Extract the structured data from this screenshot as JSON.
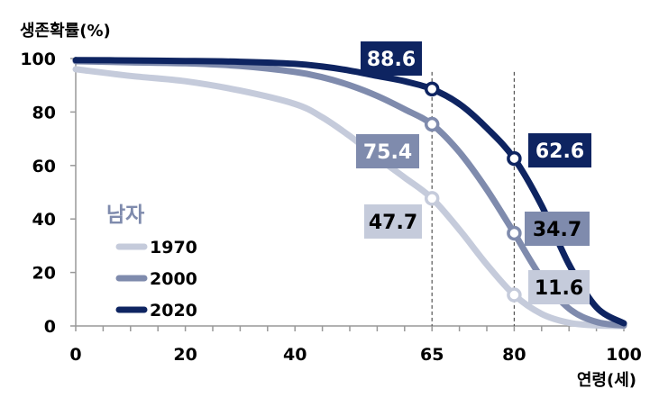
{
  "chart_data": {
    "type": "line",
    "ylabel": "생존확률(%)",
    "xlabel": "연령(세)",
    "xlim": [
      0,
      100
    ],
    "ylim": [
      0,
      100
    ],
    "x_ticks": [
      0,
      20,
      40,
      65,
      80,
      100
    ],
    "y_ticks": [
      0,
      20,
      40,
      60,
      80,
      100
    ],
    "legend_title": "남자",
    "legend_position": "lower-left",
    "grid": false,
    "reference_lines_x": [
      65,
      80
    ],
    "series": [
      {
        "name": "1970",
        "color": "#c5cbdb",
        "points": [
          [
            0,
            96
          ],
          [
            10,
            93.5
          ],
          [
            20,
            91.5
          ],
          [
            30,
            88
          ],
          [
            40,
            83
          ],
          [
            45,
            78
          ],
          [
            50,
            71
          ],
          [
            55,
            63
          ],
          [
            60,
            55.5
          ],
          [
            65,
            47.7
          ],
          [
            70,
            36
          ],
          [
            75,
            23
          ],
          [
            80,
            11.6
          ],
          [
            85,
            4.5
          ],
          [
            90,
            1.2
          ],
          [
            95,
            0.2
          ],
          [
            100,
            0
          ]
        ]
      },
      {
        "name": "2000",
        "color": "#7f8bad",
        "points": [
          [
            0,
            99
          ],
          [
            10,
            98.6
          ],
          [
            20,
            98.2
          ],
          [
            30,
            97.2
          ],
          [
            40,
            95
          ],
          [
            45,
            93
          ],
          [
            50,
            90
          ],
          [
            55,
            86
          ],
          [
            60,
            81
          ],
          [
            65,
            75.4
          ],
          [
            70,
            65
          ],
          [
            75,
            51
          ],
          [
            80,
            34.7
          ],
          [
            85,
            18
          ],
          [
            90,
            6.5
          ],
          [
            95,
            1.5
          ],
          [
            100,
            0.2
          ]
        ]
      },
      {
        "name": "2020",
        "color": "#0e2461",
        "points": [
          [
            0,
            99.4
          ],
          [
            10,
            99.3
          ],
          [
            20,
            99.1
          ],
          [
            30,
            98.8
          ],
          [
            40,
            98
          ],
          [
            45,
            97
          ],
          [
            50,
            95.5
          ],
          [
            55,
            93.5
          ],
          [
            60,
            91.5
          ],
          [
            65,
            88.6
          ],
          [
            70,
            83
          ],
          [
            75,
            74
          ],
          [
            80,
            62.6
          ],
          [
            85,
            45
          ],
          [
            90,
            23
          ],
          [
            95,
            7
          ],
          [
            100,
            1
          ]
        ]
      }
    ],
    "annotations": [
      {
        "series": "1970",
        "x": 65,
        "label": "47.7"
      },
      {
        "series": "2000",
        "x": 65,
        "label": "75.4"
      },
      {
        "series": "2020",
        "x": 65,
        "label": "88.6"
      },
      {
        "series": "1970",
        "x": 80,
        "label": "11.6"
      },
      {
        "series": "2000",
        "x": 80,
        "label": "34.7"
      },
      {
        "series": "2020",
        "x": 80,
        "label": "62.6"
      }
    ]
  }
}
